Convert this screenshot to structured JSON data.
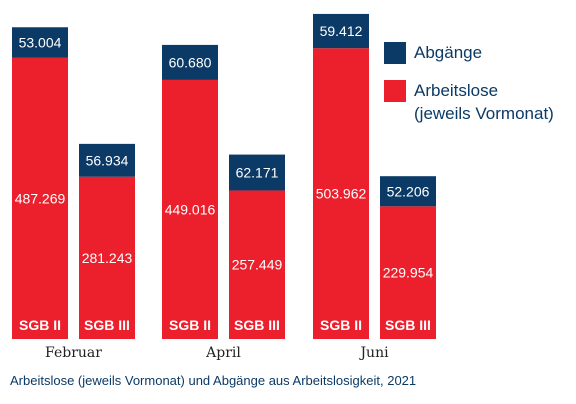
{
  "caption": "Arbeitslose (jeweils Vormonat) und Abgänge aus Arbeitslosigkeit, 2021",
  "colors": {
    "arbeitslose": "#ec1f2c",
    "abgaenge": "#0b3a66"
  },
  "chart_data": {
    "type": "bar",
    "stacked": true,
    "groups": [
      {
        "month": "Februar",
        "bars": [
          {
            "label": "SGB II",
            "arbeitslose": 487269,
            "abgaenge": 53004,
            "arbeitslose_text": "487.269",
            "abgaenge_text": "53.004"
          },
          {
            "label": "SGB III",
            "arbeitslose": 281243,
            "abgaenge": 56934,
            "arbeitslose_text": "281.243",
            "abgaenge_text": "56.934"
          }
        ]
      },
      {
        "month": "April",
        "bars": [
          {
            "label": "SGB II",
            "arbeitslose": 449016,
            "abgaenge": 60680,
            "arbeitslose_text": "449.016",
            "abgaenge_text": "60.680"
          },
          {
            "label": "SGB III",
            "arbeitslose": 257449,
            "abgaenge": 62171,
            "arbeitslose_text": "257.449",
            "abgaenge_text": "62.171"
          }
        ]
      },
      {
        "month": "Juni",
        "bars": [
          {
            "label": "SGB II",
            "arbeitslose": 503962,
            "abgaenge": 59412,
            "arbeitslose_text": "503.962",
            "abgaenge_text": "59.412"
          },
          {
            "label": "SGB III",
            "arbeitslose": 229954,
            "abgaenge": 52206,
            "arbeitslose_text": "229.954",
            "abgaenge_text": "52.206"
          }
        ]
      }
    ],
    "legend": [
      {
        "key": "abgaenge",
        "lines": [
          "Abgänge"
        ]
      },
      {
        "key": "arbeitslose",
        "lines": [
          "Arbeitslose",
          "(jeweils Vormonat)"
        ]
      }
    ],
    "legend_position": "top-right",
    "grid": false
  }
}
